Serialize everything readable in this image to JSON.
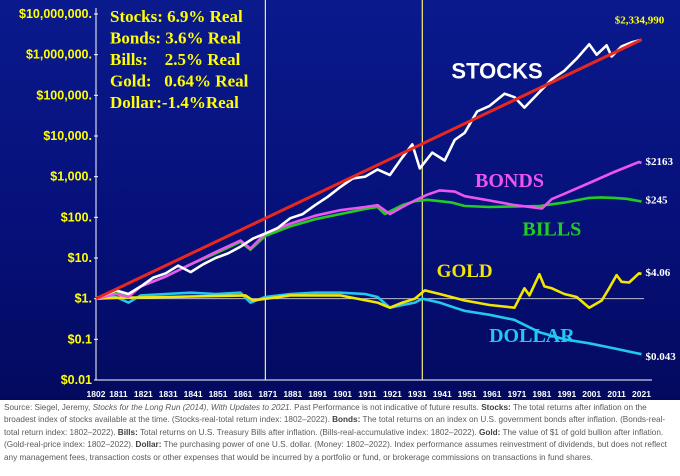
{
  "chart_data": {
    "type": "line",
    "title": "",
    "xlabel": "",
    "ylabel": "",
    "scale": "log",
    "xlim": [
      1802,
      2022
    ],
    "ylim": [
      0.01,
      10000000
    ],
    "y_ticks": [
      {
        "value": 0.01,
        "label": "$0.01"
      },
      {
        "value": 0.1,
        "label": "$0.1"
      },
      {
        "value": 1,
        "label": "$1."
      },
      {
        "value": 10,
        "label": "$10."
      },
      {
        "value": 100,
        "label": "$100."
      },
      {
        "value": 1000,
        "label": "$1,000."
      },
      {
        "value": 10000,
        "label": "$10,000."
      },
      {
        "value": 100000,
        "label": "$100,000."
      },
      {
        "value": 1000000,
        "label": "$1,000,000."
      },
      {
        "value": 10000000,
        "label": "$10,000,000."
      }
    ],
    "x_ticks": [
      "1802",
      "1811",
      "1821",
      "1831",
      "1841",
      "1851",
      "1861",
      "1871",
      "1881",
      "1891",
      "1901",
      "1911",
      "1921",
      "1931",
      "1941",
      "1951",
      "1961",
      "1971",
      "1981",
      "1991",
      "2001",
      "2011",
      "2021"
    ],
    "vertical_markers": [
      1870,
      1933
    ],
    "legend_box": [
      "Stocks: 6.9% Real",
      "Bonds: 3.6% Real",
      "Bills:    2.5% Real",
      "Gold:   0.64% Real",
      "Dollar:-1.4%Real"
    ],
    "trend_line": {
      "name": "Stocks trend",
      "color": "#e8281e",
      "x": [
        1802,
        2021
      ],
      "y": [
        1,
        2334990
      ]
    },
    "series": [
      {
        "name": "STOCKS",
        "color": "#ffffff",
        "label_color": "#ffffff",
        "end_label": "$2,334,990",
        "x": [
          1802,
          1810,
          1815,
          1820,
          1825,
          1830,
          1835,
          1840,
          1845,
          1850,
          1855,
          1860,
          1865,
          1870,
          1875,
          1880,
          1885,
          1890,
          1895,
          1900,
          1905,
          1910,
          1915,
          1920,
          1925,
          1929,
          1932,
          1937,
          1942,
          1946,
          1950,
          1955,
          1960,
          1966,
          1970,
          1974,
          1980,
          1985,
          1990,
          1995,
          2000,
          2003,
          2007,
          2009,
          2013,
          2017,
          2021
        ],
        "y": [
          1,
          1.6,
          1.3,
          2,
          3.3,
          4.2,
          6.5,
          4.5,
          7,
          10,
          13,
          19,
          30,
          40,
          55,
          95,
          120,
          200,
          320,
          550,
          900,
          1000,
          1500,
          1100,
          3000,
          6200,
          1600,
          3900,
          2500,
          8000,
          12000,
          40000,
          55000,
          110000,
          90000,
          50000,
          120000,
          250000,
          400000,
          800000,
          1800000,
          1000000,
          1700000,
          900000,
          1600000,
          2000000,
          2334990
        ]
      },
      {
        "name": "BONDS",
        "color": "#ee55ee",
        "label_color": "#ee55ee",
        "end_label": "$2163",
        "x": [
          1802,
          1810,
          1815,
          1820,
          1830,
          1840,
          1850,
          1860,
          1864,
          1870,
          1880,
          1890,
          1900,
          1910,
          1915,
          1920,
          1925,
          1930,
          1935,
          1940,
          1946,
          1950,
          1960,
          1970,
          1981,
          1985,
          1990,
          2000,
          2010,
          2020,
          2021
        ],
        "y": [
          1,
          1.3,
          1.1,
          2,
          3.5,
          7,
          14,
          27,
          17,
          40,
          70,
          110,
          150,
          180,
          200,
          120,
          180,
          260,
          360,
          460,
          430,
          330,
          260,
          200,
          165,
          280,
          380,
          700,
          1300,
          2300,
          2163
        ]
      },
      {
        "name": "BILLS",
        "color": "#22cc22",
        "label_color": "#22cc22",
        "end_label": "$245",
        "x": [
          1802,
          1810,
          1815,
          1820,
          1830,
          1840,
          1850,
          1860,
          1864,
          1870,
          1880,
          1890,
          1900,
          1910,
          1915,
          1918,
          1920,
          1925,
          1930,
          1935,
          1945,
          1950,
          1960,
          1970,
          1980,
          1990,
          2000,
          2005,
          2010,
          2015,
          2021
        ],
        "y": [
          1,
          1.4,
          1.2,
          2,
          3.5,
          7,
          13,
          25,
          16,
          35,
          60,
          90,
          120,
          160,
          180,
          120,
          140,
          200,
          250,
          270,
          230,
          190,
          180,
          185,
          190,
          230,
          300,
          310,
          300,
          285,
          245
        ]
      },
      {
        "name": "GOLD",
        "color": "#f2e600",
        "label_color": "#f2e600",
        "end_label": "$4.06",
        "x": [
          1802,
          1810,
          1830,
          1862,
          1865,
          1880,
          1900,
          1915,
          1920,
          1925,
          1930,
          1934,
          1940,
          1950,
          1960,
          1970,
          1974,
          1976,
          1980,
          1982,
          1985,
          1990,
          1995,
          2000,
          2005,
          2008,
          2011,
          2013,
          2016,
          2020,
          2021
        ],
        "y": [
          1,
          1.05,
          1.1,
          1.2,
          0.9,
          1.2,
          1.2,
          0.8,
          0.6,
          0.8,
          1,
          1.6,
          1.3,
          0.9,
          0.7,
          0.6,
          1.8,
          1.2,
          4,
          2,
          1.8,
          1.3,
          1.1,
          0.6,
          0.9,
          1.8,
          3.8,
          2.6,
          2.5,
          4.2,
          4.06
        ]
      },
      {
        "name": "DOLLAR",
        "color": "#22c8f0",
        "label_color": "#22c8f0",
        "end_label": "$0.043",
        "x": [
          1802,
          1810,
          1815,
          1820,
          1830,
          1840,
          1850,
          1860,
          1864,
          1870,
          1880,
          1890,
          1900,
          1910,
          1915,
          1920,
          1925,
          1930,
          1933,
          1940,
          1946,
          1950,
          1960,
          1970,
          1980,
          1990,
          2000,
          2010,
          2021
        ],
        "y": [
          1,
          1.1,
          0.8,
          1.2,
          1.3,
          1.4,
          1.3,
          1.4,
          0.8,
          1.1,
          1.3,
          1.4,
          1.4,
          1.3,
          1.1,
          0.6,
          0.7,
          0.8,
          1,
          0.8,
          0.6,
          0.5,
          0.4,
          0.3,
          0.15,
          0.1,
          0.08,
          0.06,
          0.043
        ]
      }
    ]
  },
  "source_note": {
    "prefix": "Source: Siegel, Jeremy, ",
    "book": "Stocks for the Long Run (2014), With Updates to 2021.",
    "p1": " Past Performance is not indicative of future results. ",
    "stocks_label": "Stocks:",
    "stocks_text": " The total returns after inflation on the broadest index of stocks available at the time. (Stocks-real-total return index: 1802–2022). ",
    "bonds_label": "Bonds:",
    "bonds_text": " The total returns on an index on U.S. government bonds after inflation. (Bonds-real-total return index: 1802–2022). ",
    "bills_label": "Bills:",
    "bills_text": " Total returns on U.S. Treasury Bills after inflation. (Bills-real-accumulative index: 1802–2022). ",
    "gold_label": "Gold:",
    "gold_text": " The value of $1 of gold bullion after inflation. (Gold-real-price index: 1802–2022). ",
    "dollar_label": "Dollar:",
    "dollar_text": " The purchasing power of one U.S. dollar. (Money: 1802–2022). Index performance assumes reinvestment of dividends, but does not reflect any management fees, transaction costs or other expenses that would be incurred by a portfolio or fund, or brokerage commissions on transactions in fund shares."
  }
}
